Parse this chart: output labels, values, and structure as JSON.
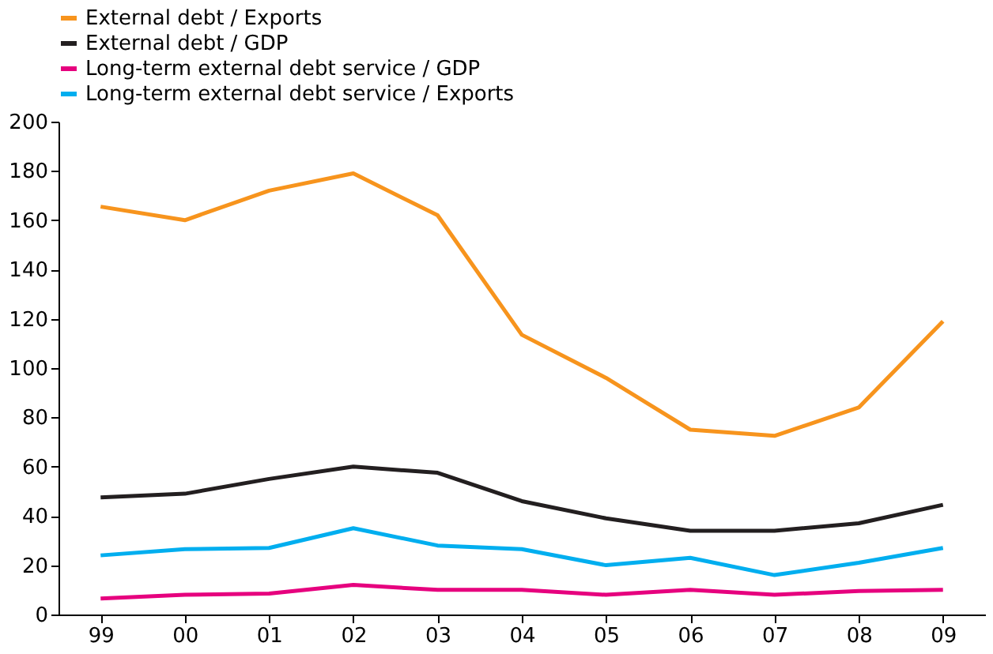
{
  "chart_data": {
    "type": "line",
    "categories": [
      "99",
      "00",
      "01",
      "02",
      "03",
      "04",
      "05",
      "06",
      "07",
      "08",
      "09"
    ],
    "series": [
      {
        "name": "External debt / Exports",
        "color": "#f7941d",
        "values": [
          165.5,
          160,
          172,
          179,
          162,
          113.5,
          96,
          75,
          72.5,
          84,
          119
        ]
      },
      {
        "name": "External debt / GDP",
        "color": "#231f20",
        "values": [
          47.5,
          49,
          55,
          60,
          57.5,
          46,
          39,
          34,
          34,
          37,
          44.5
        ]
      },
      {
        "name": "Long-term external debt service / GDP",
        "color": "#e6007e",
        "values": [
          6.5,
          8,
          8.5,
          12,
          10,
          10,
          8,
          10,
          8,
          9.5,
          10
        ]
      },
      {
        "name": "Long-term external debt service / Exports",
        "color": "#00aeef",
        "values": [
          24,
          26.5,
          27,
          35,
          28,
          26.5,
          20,
          23,
          16,
          21,
          27
        ]
      }
    ],
    "ylim": [
      0,
      200
    ],
    "yticks": [
      0,
      20,
      40,
      60,
      80,
      100,
      120,
      140,
      160,
      180,
      200
    ],
    "grid": false,
    "legend": "top",
    "marker": "none",
    "line_style": "solid"
  }
}
